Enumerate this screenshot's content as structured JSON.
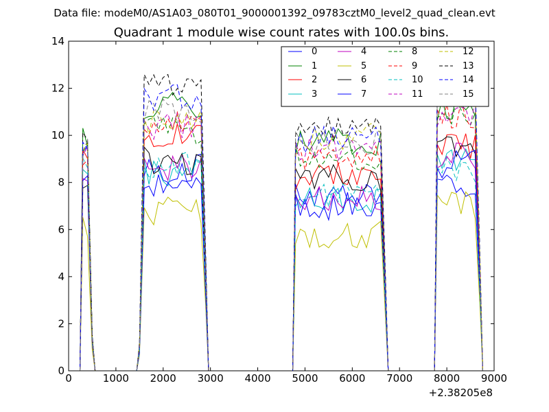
{
  "header": {
    "suptitle": "Data file: modeM0/AS1A03_080T01_9000001392_09783cztM0_level2_quad_clean.evt"
  },
  "chart_data": {
    "type": "line",
    "title": "Quadrant 1 module wise count rates with 100.0s bins.",
    "xlabel": "",
    "ylabel": "",
    "xlim": [
      0,
      9000
    ],
    "ylim": [
      0,
      14
    ],
    "x_offset_label": "+2.38205e8",
    "xticks": [
      0,
      1000,
      2000,
      3000,
      4000,
      5000,
      6000,
      7000,
      8000,
      9000
    ],
    "yticks": [
      0,
      2,
      4,
      6,
      8,
      10,
      12,
      14
    ],
    "xtick_labels": [
      "0",
      "1000",
      "2000",
      "3000",
      "4000",
      "5000",
      "6000",
      "7000",
      "8000",
      "9000"
    ],
    "ytick_labels": [
      "0",
      "2",
      "4",
      "6",
      "8",
      "10",
      "12",
      "14"
    ],
    "grid": false,
    "legend": {
      "placement": "top-right",
      "columns": 4
    },
    "segments": [
      {
        "start": 300,
        "end": 500,
        "n": 3
      },
      {
        "start": 1500,
        "end": 2900,
        "n": 15
      },
      {
        "start": 4800,
        "end": 6700,
        "n": 20
      },
      {
        "start": 7800,
        "end": 8700,
        "n": 10
      }
    ],
    "gaps": [
      [
        600,
        1400
      ],
      [
        3000,
        4700
      ],
      [
        6800,
        7700
      ]
    ],
    "series": [
      {
        "name": "0",
        "color": "#0000ff",
        "dash": "solid",
        "levels": [
          9.6,
          8.6,
          7.4,
          8.0
        ]
      },
      {
        "name": "1",
        "color": "#008000",
        "dash": "solid",
        "levels": [
          9.9,
          11.3,
          9.7,
          11.2
        ]
      },
      {
        "name": "2",
        "color": "#ff0000",
        "dash": "solid",
        "levels": [
          9.0,
          9.9,
          8.3,
          9.5
        ]
      },
      {
        "name": "3",
        "color": "#00bfbf",
        "dash": "solid",
        "levels": [
          8.1,
          8.4,
          7.2,
          9.0
        ]
      },
      {
        "name": "4",
        "color": "#bf00bf",
        "dash": "solid",
        "levels": [
          8.4,
          8.6,
          7.3,
          9.2
        ]
      },
      {
        "name": "5",
        "color": "#bfbf00",
        "dash": "solid",
        "levels": [
          6.0,
          6.8,
          5.8,
          7.0
        ]
      },
      {
        "name": "6",
        "color": "#000000",
        "dash": "solid",
        "levels": [
          8.3,
          8.9,
          8.2,
          9.6
        ]
      },
      {
        "name": "7",
        "color": "#0000ff",
        "dash": "solid",
        "levels": [
          7.9,
          7.8,
          7.0,
          8.8
        ]
      },
      {
        "name": "8",
        "color": "#008000",
        "dash": "dashed",
        "levels": [
          9.8,
          10.2,
          9.1,
          11.0
        ]
      },
      {
        "name": "9",
        "color": "#ff0000",
        "dash": "dashed",
        "levels": [
          9.2,
          10.6,
          9.0,
          10.9
        ]
      },
      {
        "name": "10",
        "color": "#00bfbf",
        "dash": "dashed",
        "levels": [
          8.6,
          8.8,
          7.4,
          8.6
        ]
      },
      {
        "name": "11",
        "color": "#bf00bf",
        "dash": "dashed",
        "levels": [
          9.0,
          10.4,
          9.4,
          11.0
        ]
      },
      {
        "name": "12",
        "color": "#bfbf00",
        "dash": "dashed",
        "levels": [
          9.5,
          10.6,
          9.9,
          11.7
        ]
      },
      {
        "name": "13",
        "color": "#000000",
        "dash": "dashed",
        "levels": [
          10.3,
          12.2,
          10.3,
          12.6
        ]
      },
      {
        "name": "14",
        "color": "#0000ff",
        "dash": "dashed",
        "levels": [
          9.7,
          11.6,
          9.8,
          12.1
        ]
      },
      {
        "name": "15",
        "color": "#808080",
        "dash": "dashed",
        "levels": [
          9.3,
          11.0,
          9.6,
          12.0
        ]
      }
    ]
  }
}
